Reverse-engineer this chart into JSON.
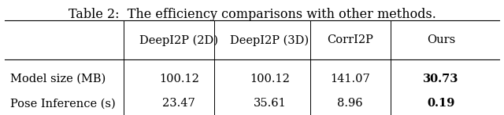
{
  "title": "Table 2:  The efficiency comparisons with other methods.",
  "columns": [
    "",
    "DeepI2P (2D)",
    "DeepI2P (3D)",
    "CorrI2P",
    "Ours"
  ],
  "rows": [
    [
      "Model size (MB)",
      "100.12",
      "100.12",
      "141.07",
      "30.73"
    ],
    [
      "Pose Inference (s)",
      "23.47",
      "35.61",
      "8.96",
      "0.19"
    ]
  ],
  "bold_col": 4,
  "bg_color": "#ffffff",
  "text_color": "#000000",
  "title_fontsize": 11.5,
  "cell_fontsize": 10.5,
  "fig_width": 6.4,
  "fig_height": 1.47
}
